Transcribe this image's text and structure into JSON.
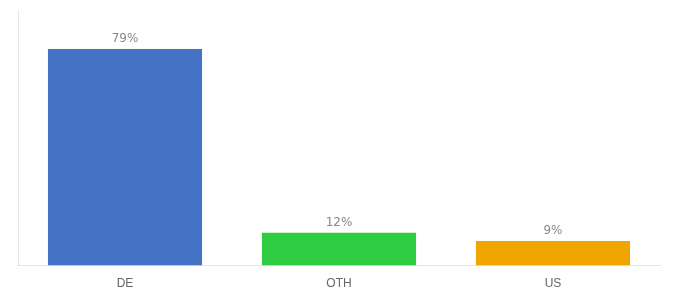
{
  "chart_data": {
    "type": "bar",
    "categories": [
      "DE",
      "OTH",
      "US"
    ],
    "values": [
      79,
      12,
      9
    ],
    "value_labels": [
      "79%",
      "12%",
      "9%"
    ],
    "colors": [
      "#4472c4",
      "#2ecc40",
      "#f0a500"
    ],
    "ylim": [
      0,
      93.22
    ],
    "grid": false,
    "data_labels": true,
    "tick_labels": "x"
  }
}
